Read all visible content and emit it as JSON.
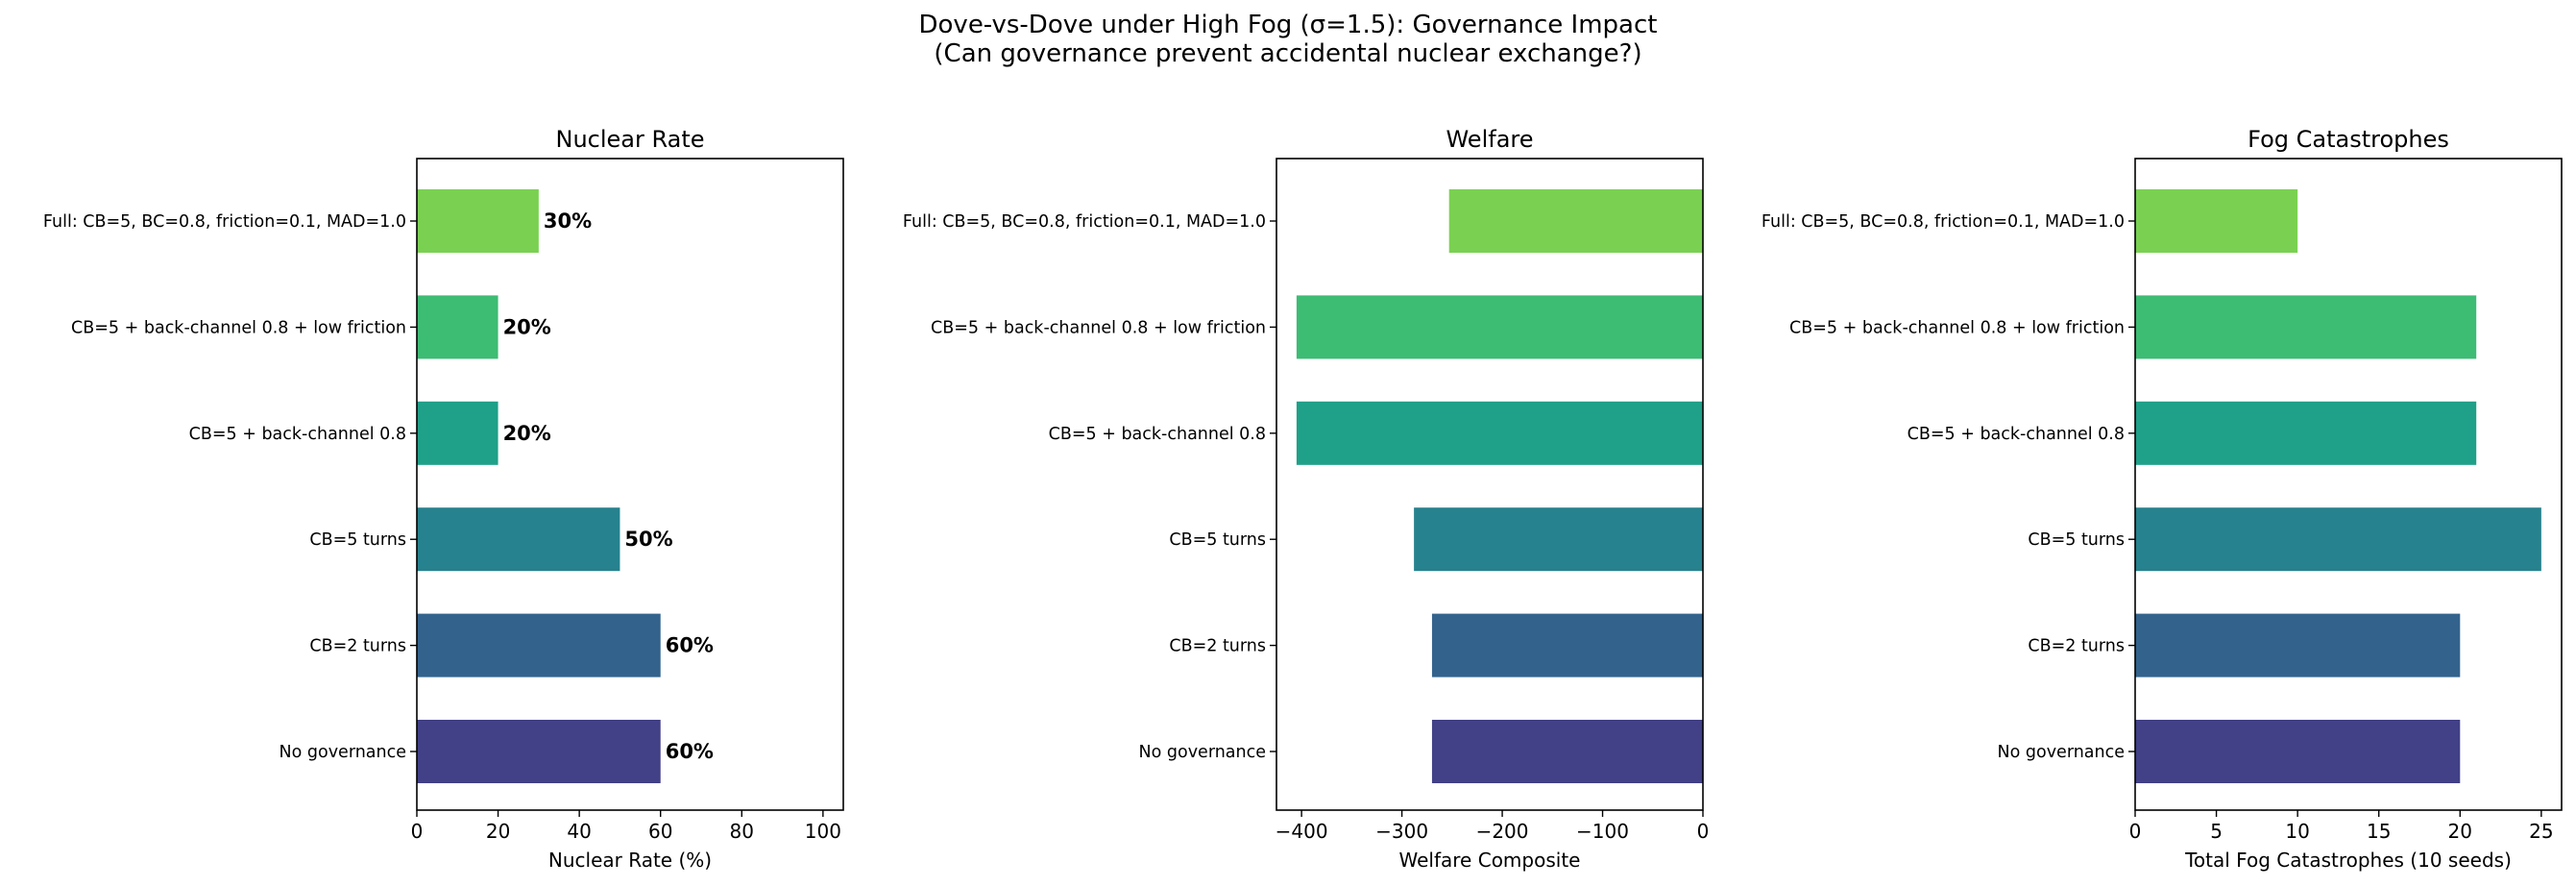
{
  "suptitle_line1": "Dove-vs-Dove under High Fog (σ=1.5): Governance Impact",
  "suptitle_line2": "(Can governance prevent accidental nuclear exchange?)",
  "chart_data": [
    {
      "type": "bar",
      "orientation": "horizontal",
      "title": "Nuclear Rate",
      "xlabel": "Nuclear Rate (%)",
      "categories": [
        "No governance",
        "CB=2 turns",
        "CB=5 turns",
        "CB=5 + back-channel 0.8",
        "CB=5 + back-channel 0.8 + low friction",
        "Full: CB=5, BC=0.8, friction=0.1, MAD=1.0"
      ],
      "values": [
        60,
        60,
        50,
        20,
        20,
        30
      ],
      "value_labels": [
        "60%",
        "60%",
        "50%",
        "20%",
        "20%",
        "30%"
      ],
      "xlim": [
        0,
        105
      ],
      "xticks": [
        0,
        20,
        40,
        60,
        80,
        100
      ],
      "xtick_labels": [
        "0",
        "20",
        "40",
        "60",
        "80",
        "100"
      ],
      "colors": [
        "#424086",
        "#33638d",
        "#26828e",
        "#1fa088",
        "#3dbc74",
        "#7ad151"
      ]
    },
    {
      "type": "bar",
      "orientation": "horizontal",
      "title": "Welfare",
      "xlabel": "Welfare Composite",
      "categories": [
        "No governance",
        "CB=2 turns",
        "CB=5 turns",
        "CB=5 + back-channel 0.8",
        "CB=5 + back-channel 0.8 + low friction",
        "Full: CB=5, BC=0.8, friction=0.1, MAD=1.0"
      ],
      "values": [
        -270,
        -270,
        -288,
        -405,
        -405,
        -253
      ],
      "xlim": [
        -425,
        0
      ],
      "xticks": [
        -400,
        -300,
        -200,
        -100,
        0
      ],
      "xtick_labels": [
        "−400",
        "−300",
        "−200",
        "−100",
        "0"
      ],
      "colors": [
        "#424086",
        "#33638d",
        "#26828e",
        "#1fa088",
        "#3dbc74",
        "#7ad151"
      ]
    },
    {
      "type": "bar",
      "orientation": "horizontal",
      "title": "Fog Catastrophes",
      "xlabel": "Total Fog Catastrophes (10 seeds)",
      "categories": [
        "No governance",
        "CB=2 turns",
        "CB=5 turns",
        "CB=5 + back-channel 0.8",
        "CB=5 + back-channel 0.8 + low friction",
        "Full: CB=5, BC=0.8, friction=0.1, MAD=1.0"
      ],
      "values": [
        20,
        20,
        25,
        21,
        21,
        10
      ],
      "xlim": [
        0,
        26.25
      ],
      "xticks": [
        0,
        5,
        10,
        15,
        20,
        25
      ],
      "xtick_labels": [
        "0",
        "5",
        "10",
        "15",
        "20",
        "25"
      ],
      "colors": [
        "#424086",
        "#33638d",
        "#26828e",
        "#1fa088",
        "#3dbc74",
        "#7ad151"
      ]
    }
  ]
}
